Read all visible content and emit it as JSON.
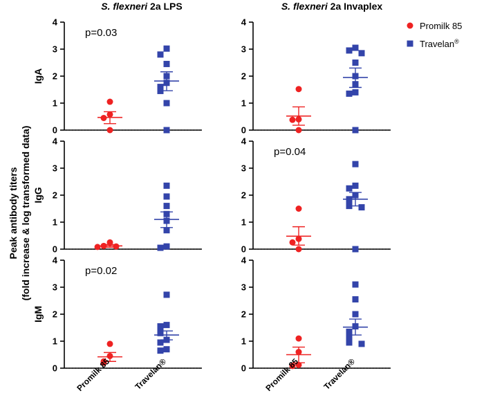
{
  "chart_data": {
    "type": "scatter",
    "y_axis_title": [
      "Peak antibody titers",
      "(fold increase & log transformed data)"
    ],
    "columns": [
      {
        "title_italic": "S. flexneri",
        "title_rest": " 2a LPS"
      },
      {
        "title_italic": "S. flexneri",
        "title_rest": " 2a Invaplex"
      }
    ],
    "categories": [
      "Promilk 85",
      "Travelan®"
    ],
    "ylim": [
      0,
      4
    ],
    "yticks": [
      "0",
      "1",
      "2",
      "3",
      "4"
    ],
    "legend": [
      {
        "name": "Promilk 85",
        "marker": "circle",
        "color": "#ee2222"
      },
      {
        "name": "Travelan",
        "superscript": "®",
        "marker": "square",
        "color": "#3344aa"
      }
    ],
    "panels": [
      {
        "row": 0,
        "col": 0,
        "ylabel": "IgA",
        "pvalue": "p=0.03",
        "series": [
          {
            "name": "Promilk 85",
            "values": [
              1.05,
              0.58,
              0.45,
              0.0
            ],
            "mean": 0.47,
            "sem_upper": 0.68,
            "sem_lower": 0.24
          },
          {
            "name": "Travelan",
            "values": [
              3.02,
              2.8,
              2.45,
              2.0,
              1.75,
              1.6,
              1.45,
              1.0,
              0.0
            ],
            "mean": 1.82,
            "sem_upper": 2.16,
            "sem_lower": 1.46
          }
        ]
      },
      {
        "row": 0,
        "col": 1,
        "ylabel": "",
        "pvalue": "",
        "series": [
          {
            "name": "Promilk 85",
            "values": [
              1.52,
              0.4,
              0.38,
              0.0
            ],
            "mean": 0.52,
            "sem_upper": 0.86,
            "sem_lower": 0.18
          },
          {
            "name": "Travelan",
            "values": [
              3.05,
              2.95,
              2.85,
              2.5,
              2.0,
              1.7,
              1.4,
              1.35,
              0.0
            ],
            "mean": 1.95,
            "sem_upper": 2.3,
            "sem_lower": 1.58
          }
        ]
      },
      {
        "row": 1,
        "col": 0,
        "ylabel": "IgG",
        "pvalue": "",
        "series": [
          {
            "name": "Promilk 85",
            "values": [
              0.25,
              0.12,
              0.1,
              0.08
            ],
            "mean": 0.12,
            "sem_upper": 0.17,
            "sem_lower": 0.07
          },
          {
            "name": "Travelan",
            "values": [
              2.35,
              1.95,
              1.6,
              1.3,
              1.05,
              0.7,
              0.1,
              0.05
            ],
            "mean": 1.1,
            "sem_upper": 1.38,
            "sem_lower": 0.8
          }
        ]
      },
      {
        "row": 1,
        "col": 1,
        "ylabel": "",
        "pvalue": "p=0.04",
        "series": [
          {
            "name": "Promilk 85",
            "values": [
              1.5,
              0.38,
              0.25,
              0.0
            ],
            "mean": 0.48,
            "sem_upper": 0.83,
            "sem_lower": 0.15
          },
          {
            "name": "Travelan",
            "values": [
              3.15,
              2.35,
              2.25,
              2.0,
              1.85,
              1.7,
              1.6,
              1.55,
              0.0
            ],
            "mean": 1.85,
            "sem_upper": 2.1,
            "sem_lower": 1.6
          }
        ]
      },
      {
        "row": 2,
        "col": 0,
        "ylabel": "IgM",
        "pvalue": "p=0.02",
        "series": [
          {
            "name": "Promilk 85",
            "values": [
              0.9,
              0.45,
              0.25,
              0.2
            ],
            "mean": 0.42,
            "sem_upper": 0.58,
            "sem_lower": 0.25
          },
          {
            "name": "Travelan",
            "values": [
              2.72,
              1.6,
              1.55,
              1.35,
              1.3,
              1.05,
              0.95,
              0.7,
              0.65
            ],
            "mean": 1.23,
            "sem_upper": 1.38,
            "sem_lower": 1.05
          }
        ]
      },
      {
        "row": 2,
        "col": 1,
        "ylabel": "",
        "pvalue": "",
        "series": [
          {
            "name": "Promilk 85",
            "values": [
              1.1,
              0.6,
              0.12,
              0.08
            ],
            "mean": 0.5,
            "sem_upper": 0.78,
            "sem_lower": 0.2
          },
          {
            "name": "Travelan",
            "values": [
              3.1,
              2.55,
              2.0,
              1.55,
              1.35,
              1.2,
              1.0,
              0.95,
              0.9
            ],
            "mean": 1.52,
            "sem_upper": 1.82,
            "sem_lower": 1.23
          }
        ]
      }
    ]
  }
}
